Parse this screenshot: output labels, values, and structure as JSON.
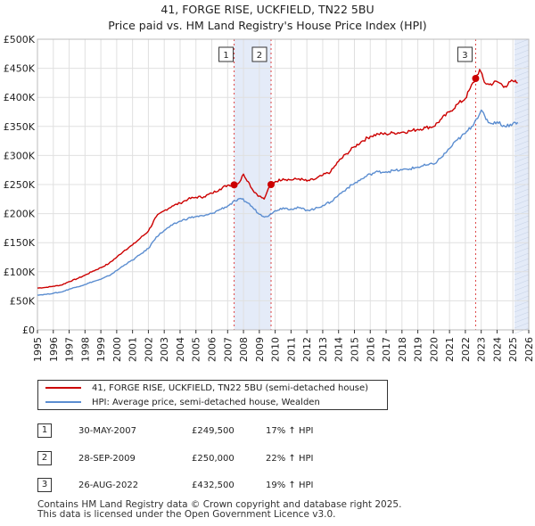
{
  "chart_data": {
    "type": "line",
    "title": "41, FORGE RISE, UCKFIELD, TN22 5BU",
    "subtitle": "Price paid vs. HM Land Registry's House Price Index (HPI)",
    "xlim": [
      1995,
      2026
    ],
    "ylim": [
      0,
      500000
    ],
    "x_ticks": [
      "1995",
      "1996",
      "1997",
      "1998",
      "1999",
      "2000",
      "2001",
      "2002",
      "2003",
      "2004",
      "2005",
      "2006",
      "2007",
      "2008",
      "2009",
      "2010",
      "2011",
      "2012",
      "2013",
      "2014",
      "2015",
      "2016",
      "2017",
      "2018",
      "2019",
      "2020",
      "2021",
      "2022",
      "2023",
      "2024",
      "2025",
      "2026"
    ],
    "y_ticks": [
      {
        "value": 0,
        "label": "£0"
      },
      {
        "value": 50000,
        "label": "£50K"
      },
      {
        "value": 100000,
        "label": "£100K"
      },
      {
        "value": 150000,
        "label": "£150K"
      },
      {
        "value": 200000,
        "label": "£200K"
      },
      {
        "value": 250000,
        "label": "£250K"
      },
      {
        "value": 300000,
        "label": "£300K"
      },
      {
        "value": 350000,
        "label": "£350K"
      },
      {
        "value": 400000,
        "label": "£400K"
      },
      {
        "value": 450000,
        "label": "£450K"
      },
      {
        "value": 500000,
        "label": "£500K"
      }
    ],
    "grid": true,
    "series": [
      {
        "name": "41, FORGE RISE, UCKFIELD, TN22 5BU (semi-detached house)",
        "color": "#cc0000",
        "x": [
          1995.0,
          1995.5,
          1996.0,
          1996.5,
          1997.0,
          1997.5,
          1998.0,
          1998.5,
          1999.0,
          1999.5,
          2000.0,
          2000.5,
          2001.0,
          2001.5,
          2002.0,
          2002.5,
          2003.0,
          2003.5,
          2004.0,
          2004.5,
          2005.0,
          2005.5,
          2006.0,
          2006.5,
          2007.0,
          2007.41,
          2007.75,
          2008.0,
          2008.3,
          2008.6,
          2009.0,
          2009.3,
          2009.5,
          2009.74,
          2010.0,
          2010.5,
          2011.0,
          2011.5,
          2012.0,
          2012.5,
          2013.0,
          2013.5,
          2014.0,
          2014.5,
          2015.0,
          2015.5,
          2016.0,
          2016.5,
          2017.0,
          2017.5,
          2018.0,
          2018.5,
          2019.0,
          2019.5,
          2020.0,
          2020.5,
          2021.0,
          2021.5,
          2022.0,
          2022.3,
          2022.65,
          2022.9,
          2023.2,
          2023.5,
          2024.0,
          2024.5,
          2025.0,
          2025.3
        ],
        "values": [
          72000,
          73000,
          75000,
          77000,
          83000,
          88000,
          94000,
          101000,
          107000,
          114000,
          125000,
          137000,
          146000,
          158000,
          170000,
          195000,
          205000,
          213000,
          218000,
          225000,
          228000,
          229000,
          235000,
          242000,
          249000,
          249500,
          254000,
          268000,
          255000,
          240000,
          230000,
          225000,
          238000,
          250000,
          255000,
          260000,
          258000,
          260000,
          256000,
          259000,
          266000,
          272000,
          290000,
          303000,
          315000,
          325000,
          333000,
          337000,
          337000,
          339000,
          340000,
          342000,
          345000,
          348000,
          350000,
          363000,
          375000,
          388000,
          398000,
          415000,
          432500,
          448000,
          426000,
          422000,
          427000,
          419000,
          428000,
          425000
        ]
      },
      {
        "name": "HPI: Average price, semi-detached house, Wealden",
        "color": "#5b8dd0",
        "x": [
          1995.0,
          1995.5,
          1996.0,
          1996.5,
          1997.0,
          1997.5,
          1998.0,
          1998.5,
          1999.0,
          1999.5,
          2000.0,
          2000.5,
          2001.0,
          2001.5,
          2002.0,
          2002.5,
          2003.0,
          2003.5,
          2004.0,
          2004.5,
          2005.0,
          2005.5,
          2006.0,
          2006.5,
          2007.0,
          2007.5,
          2007.9,
          2008.3,
          2008.6,
          2009.0,
          2009.4,
          2009.8,
          2010.0,
          2010.5,
          2011.0,
          2011.5,
          2012.0,
          2012.5,
          2013.0,
          2013.5,
          2014.0,
          2014.5,
          2015.0,
          2015.5,
          2016.0,
          2016.5,
          2017.0,
          2017.5,
          2018.0,
          2018.5,
          2019.0,
          2019.5,
          2020.0,
          2020.5,
          2021.0,
          2021.5,
          2022.0,
          2022.4,
          2022.7,
          2023.0,
          2023.3,
          2023.6,
          2024.0,
          2024.5,
          2025.0,
          2025.3
        ],
        "values": [
          60000,
          61000,
          63000,
          65000,
          70000,
          74000,
          78000,
          83000,
          87000,
          93000,
          102000,
          112000,
          120000,
          130000,
          140000,
          160000,
          171000,
          180000,
          187000,
          192000,
          195000,
          196000,
          200000,
          207000,
          213000,
          222000,
          225000,
          218000,
          210000,
          199000,
          195000,
          200000,
          205000,
          210000,
          208000,
          210000,
          206000,
          208000,
          214000,
          220000,
          232000,
          243000,
          252000,
          260000,
          268000,
          272000,
          272000,
          274000,
          275000,
          277000,
          280000,
          283000,
          285000,
          297000,
          312000,
          327000,
          338000,
          350000,
          363000,
          378000,
          362000,
          355000,
          358000,
          350000,
          355000,
          357000
        ]
      }
    ],
    "sales": [
      {
        "label": "1",
        "date": "30-MAY-2007",
        "x": 2007.41,
        "price": 249500,
        "price_label": "£249,500",
        "hpi": "17% ↑ HPI"
      },
      {
        "label": "2",
        "date": "28-SEP-2009",
        "x": 2009.74,
        "price": 250000,
        "price_label": "£250,000",
        "hpi": "22% ↑ HPI"
      },
      {
        "label": "3",
        "date": "26-AUG-2022",
        "x": 2022.65,
        "price": 432500,
        "price_label": "£432,500",
        "hpi": "19% ↑ HPI"
      }
    ],
    "shaded_ranges": [
      [
        2007.41,
        2009.74
      ],
      [
        2025.1,
        2026
      ]
    ],
    "legend_position": "below"
  },
  "legend": {
    "property_label": "41, FORGE RISE, UCKFIELD, TN22 5BU (semi-detached house)",
    "hpi_label": "HPI: Average price, semi-detached house, Wealden",
    "property_color": "#cc0000",
    "hpi_color": "#5b8dd0"
  },
  "footer": {
    "line1": "Contains HM Land Registry data © Crown copyright and database right 2025.",
    "line2": "This data is licensed under the Open Government Licence v3.0."
  }
}
